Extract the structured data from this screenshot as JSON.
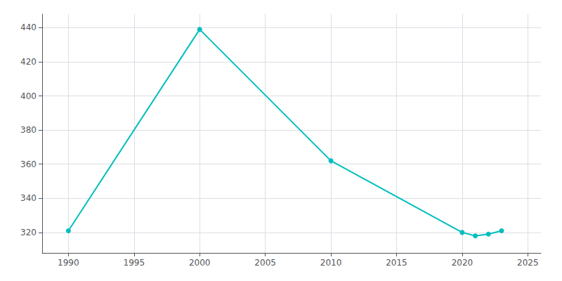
{
  "chart_data": {
    "type": "line",
    "x": [
      1990,
      2000,
      2010,
      2020,
      2021,
      2022,
      2023
    ],
    "values": [
      321,
      439,
      362,
      320,
      318,
      319,
      321
    ],
    "color": "#00BEBE",
    "marker": "circle",
    "xlim": [
      1988,
      2026
    ],
    "xticks": [
      1990,
      1995,
      2000,
      2005,
      2010,
      2015,
      2020,
      2025
    ],
    "ylim": [
      308,
      448
    ],
    "yticks": [
      320,
      340,
      360,
      380,
      400,
      420,
      440
    ],
    "grid": true
  }
}
